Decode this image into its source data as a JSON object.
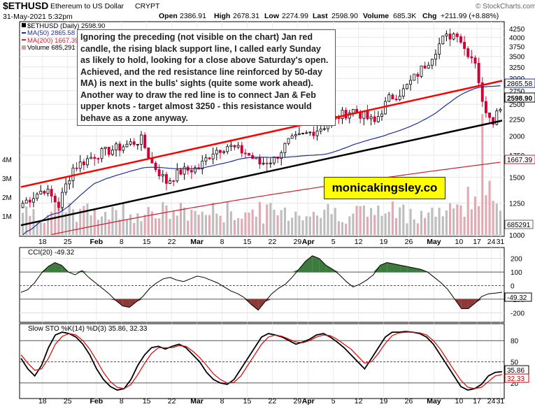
{
  "header": {
    "symbol": "$ETHUSD",
    "name": "Ethereum to US Dollar",
    "exchange": "CRYPT",
    "date": "31-May-2021 5:32pm",
    "open_label": "Open",
    "open": "2386.91",
    "high_label": "High",
    "high": "2678.31",
    "low_label": "Low",
    "low": "2274.99",
    "last_label": "Last",
    "last": "2598.90",
    "volume_label": "Volume",
    "volume": "685.3K",
    "chg_label": "Chg",
    "chg": "+211.99 (+8.88%)",
    "credit": "© StockCharts.com"
  },
  "legend": {
    "main": "$ETHUSD (Daily) 2598.90",
    "ma50": "MA(50) 2865.58",
    "ma200": "MA(200) 1667.39",
    "volume": "Volume 685,291"
  },
  "annotation": "Ignoring the preceding (not visible on the chart) Jan red candle, the rising black support line, I called early Sunday as likely to hold, looking for a close above Saturday's open. Achieved, and the red resistance line reinforced by 50-day MA) is next in the bulls' sights (quite some work ahead). Another way to draw the red line is to connect Jan & Feb upper knots - target almost 3250 - this resistance would behave as a zone anyway.",
  "brand": "monicakingsley.co",
  "colors": {
    "up": "#ffffff",
    "down": "#cc0033",
    "ma50": "#1f2f9f",
    "ma200": "#cc2233",
    "resistance": "#ff0000",
    "support": "#000000",
    "cci_fill": "#3d7a3d",
    "cci_neg_fill": "#8b3a3a"
  },
  "chart_data": [
    {
      "type": "candlestick",
      "ylim": [
        1000,
        4400
      ],
      "yscale": "log",
      "y_ticks": [
        "4250",
        "4000",
        "3750",
        "3500",
        "3250",
        "3000",
        "2750",
        "2500",
        "2250",
        "2000",
        "1750",
        "1500",
        "1250",
        "1000"
      ],
      "volume_ticks": [
        "4M",
        "3M",
        "2M",
        "1M"
      ],
      "x_tick_labels": [
        "18",
        "25",
        "Feb",
        "8",
        "15",
        "22",
        "Mar",
        "8",
        "15",
        "22",
        "29",
        "Apr",
        "5",
        "12",
        "19",
        "26",
        "May",
        "10",
        "17",
        "24",
        "31"
      ],
      "value_tags": {
        "ma50": "2865.58",
        "last": "2598.90",
        "ma200": "1667.39",
        "volume": "685291"
      },
      "series_names": [
        "$ETHUSD (Daily)",
        "MA(50)",
        "MA(200)",
        "Volume"
      ],
      "trendlines": {
        "resistance": [
          [
            "Jan 18",
            1400
          ],
          [
            "May 31",
            2950
          ]
        ],
        "support": [
          [
            "Jan 18",
            1070
          ],
          [
            "May 31",
            2230
          ]
        ]
      }
    },
    {
      "type": "line",
      "title": "CCI(20) -49.32",
      "ylim": [
        -260,
        260
      ],
      "y_ticks": [
        "200",
        "100",
        "0",
        "-100",
        "-200"
      ],
      "value_tag": "-49.32",
      "values": [
        -50,
        -30,
        20,
        90,
        140,
        170,
        150,
        100,
        80,
        110,
        60,
        20,
        -20,
        -60,
        -110,
        -150,
        -160,
        -120,
        -80,
        -20,
        20,
        50,
        60,
        40,
        30,
        50,
        70,
        60,
        40,
        20,
        -10,
        -40,
        -60,
        -90,
        -140,
        -180,
        -120,
        -60,
        -20,
        10,
        60,
        120,
        180,
        220,
        200,
        150,
        120,
        80,
        30,
        -10,
        10,
        40,
        80,
        150,
        170,
        160,
        150,
        140,
        130,
        120,
        100,
        60,
        20,
        -30,
        -100,
        -170,
        -170,
        -130,
        -80,
        -60,
        -55,
        -49
      ]
    },
    {
      "type": "line",
      "title": "Slow STO %K(14) %D(3) 35.86, 32.33",
      "ylim": [
        0,
        100
      ],
      "y_ticks": [
        "80",
        "50",
        "20"
      ],
      "value_tags": [
        "35.86",
        "32.33"
      ],
      "series": [
        {
          "name": "%K(14)",
          "values": [
            55,
            40,
            30,
            45,
            70,
            88,
            92,
            90,
            85,
            75,
            60,
            40,
            25,
            15,
            10,
            12,
            25,
            45,
            60,
            70,
            72,
            68,
            72,
            75,
            70,
            60,
            50,
            35,
            25,
            20,
            18,
            25,
            40,
            55,
            70,
            85,
            90,
            88,
            85,
            80,
            75,
            78,
            82,
            88,
            90,
            85,
            78,
            70,
            60,
            50,
            40,
            55,
            70,
            85,
            92,
            92,
            93,
            92,
            90,
            85,
            75,
            60,
            45,
            30,
            15,
            10,
            12,
            18,
            30,
            35,
            36
          ]
        },
        {
          "name": "%D(3)",
          "values": [
            60,
            48,
            38,
            40,
            55,
            75,
            86,
            90,
            88,
            80,
            68,
            52,
            35,
            22,
            14,
            12,
            18,
            32,
            48,
            62,
            70,
            70,
            70,
            73,
            72,
            65,
            56,
            45,
            33,
            25,
            20,
            21,
            30,
            45,
            60,
            75,
            85,
            88,
            86,
            82,
            78,
            77,
            80,
            85,
            88,
            87,
            82,
            75,
            68,
            58,
            48,
            50,
            62,
            76,
            87,
            91,
            92,
            92,
            91,
            88,
            80,
            68,
            53,
            38,
            24,
            14,
            12,
            14,
            22,
            30,
            32
          ]
        }
      ]
    }
  ]
}
